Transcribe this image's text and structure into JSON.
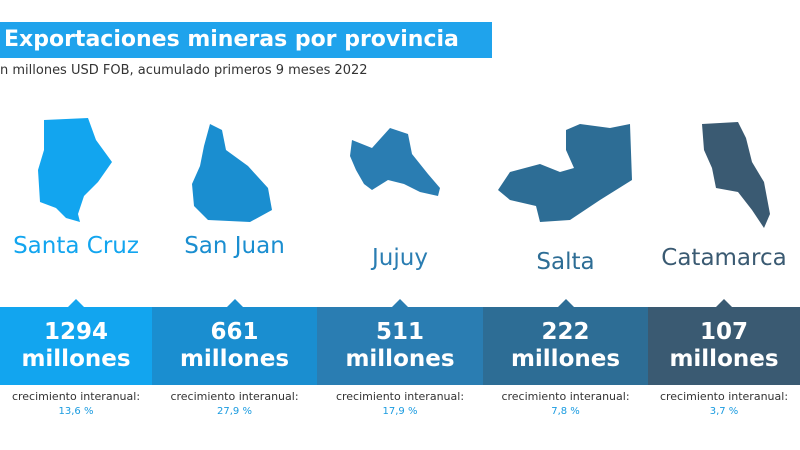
{
  "header": {
    "title": "Exportaciones mineras por provincia",
    "subtitle": "n millones USD FOB, acumulado primeros 9 meses 2022"
  },
  "provinces": [
    {
      "name": "Santa Cruz",
      "value": "1294",
      "unit": "millones",
      "growth_label": "crecimiento interanual:",
      "growth": "13,6 %",
      "color": "#12a5ef"
    },
    {
      "name": "San Juan",
      "value": "661",
      "unit": "millones",
      "growth_label": "crecimiento interanual:",
      "growth": "27,9 %",
      "color": "#1a8ed0"
    },
    {
      "name": "Jujuy",
      "value": "511",
      "unit": "millones",
      "growth_label": "crecimiento interanual:",
      "growth": "17,9 %",
      "color": "#2a7db2"
    },
    {
      "name": "Salta",
      "value": "222",
      "unit": "millones",
      "growth_label": "crecimiento interanual:",
      "growth": "7,8 %",
      "color": "#2d6d95"
    },
    {
      "name": "Catamarca",
      "value": "107",
      "unit": "millones",
      "growth_label": "crecimiento interanual:",
      "growth": "3,7 %",
      "color": "#3a5a72"
    }
  ]
}
